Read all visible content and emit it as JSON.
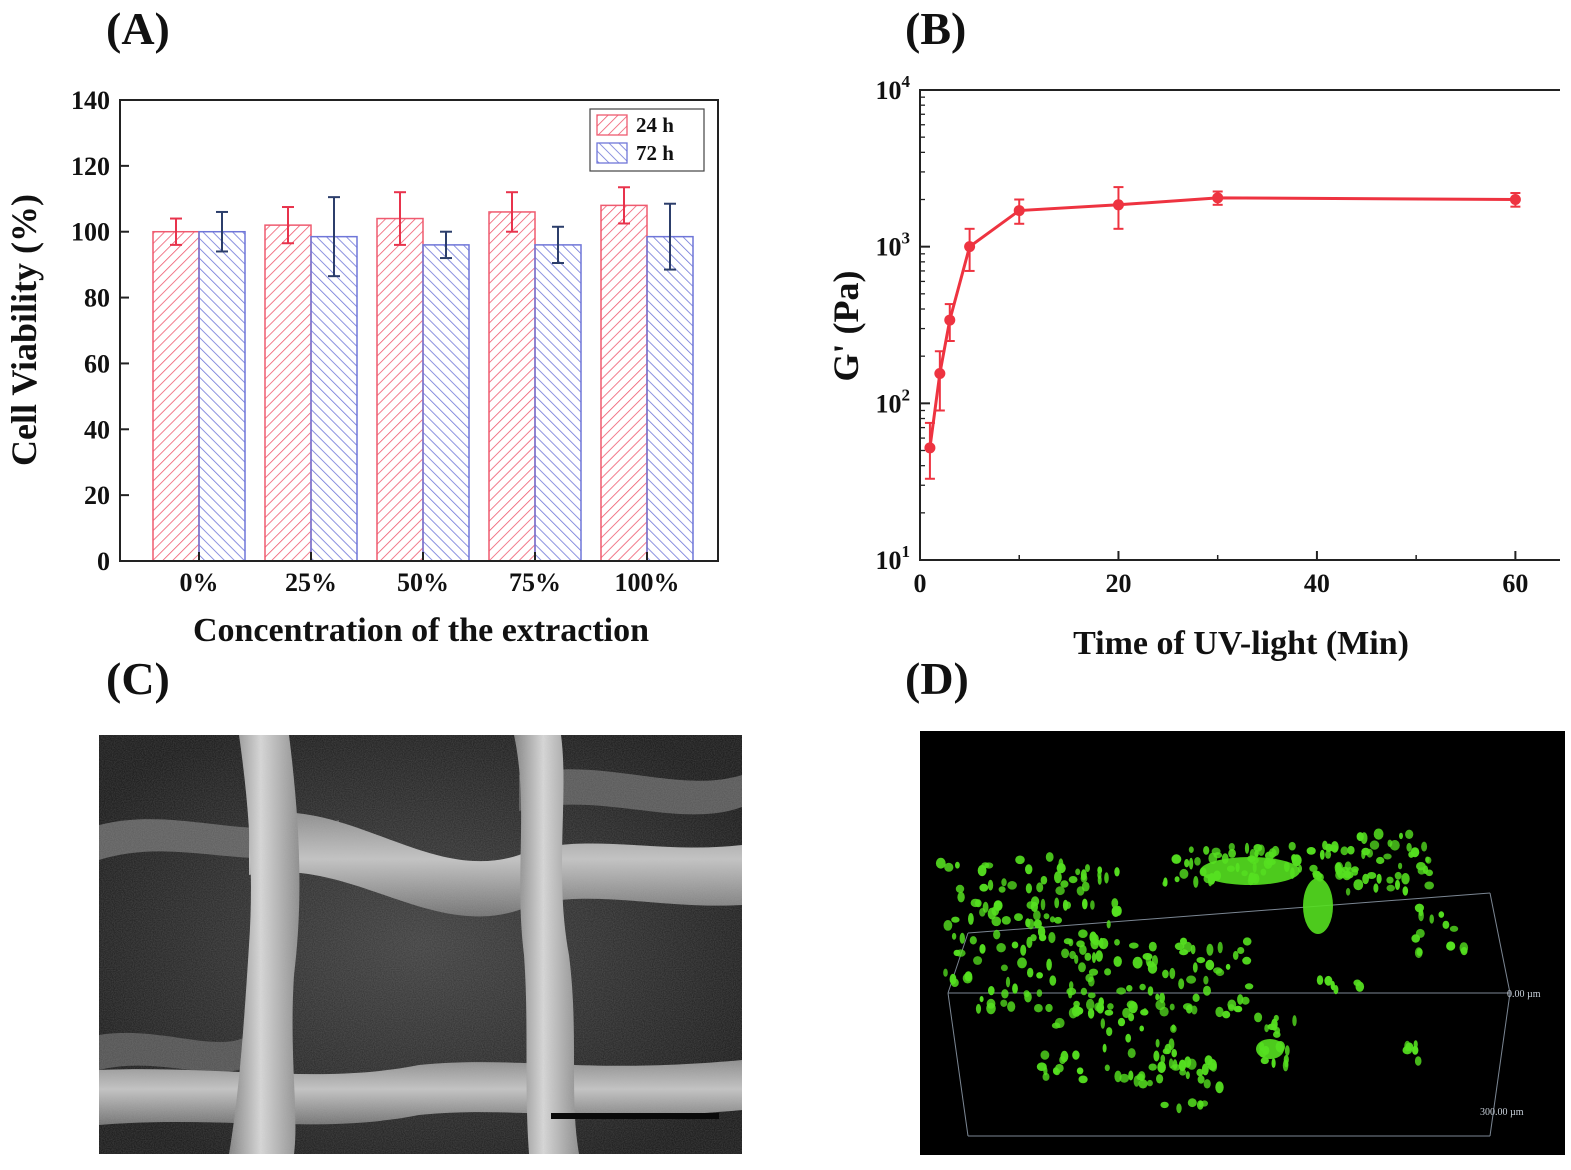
{
  "panels": {
    "a": "(A)",
    "b": "(B)",
    "c": "(C)",
    "d": "(D)"
  },
  "colors": {
    "series_24h": "#ef5a6f",
    "series_72h": "#6f76d8",
    "curve": "#ee3340",
    "errbar_24h": "#e8334c",
    "errbar_72h": "#2c3e6b",
    "cell_stain": "#55e020"
  },
  "chart_data": [
    {
      "id": "A",
      "type": "bar",
      "title": "",
      "xlabel": "Concentration of the extraction",
      "ylabel": "Cell Viability (%)",
      "ylim": [
        0,
        140
      ],
      "yticks": [
        0,
        20,
        40,
        60,
        80,
        100,
        120,
        140
      ],
      "categories": [
        "0%",
        "25%",
        "50%",
        "75%",
        "100%"
      ],
      "legend_position": "top-right",
      "grid": false,
      "series": [
        {
          "name": "24 h",
          "values": [
            100,
            102,
            104,
            106,
            108
          ],
          "errors": [
            4,
            5.5,
            8,
            6,
            5.5
          ]
        },
        {
          "name": "72 h",
          "values": [
            100,
            98.5,
            96,
            96,
            98.5
          ],
          "errors": [
            6,
            12,
            4,
            5.5,
            10
          ]
        }
      ]
    },
    {
      "id": "B",
      "type": "line",
      "title": "",
      "xlabel": "Time of UV-light (Min)",
      "ylabel": "G' (Pa)",
      "yscale": "log",
      "xlim": [
        0,
        65
      ],
      "ylim": [
        10,
        10000
      ],
      "xticks": [
        0,
        20,
        40,
        60
      ],
      "yticks": [
        {
          "base": "10",
          "exp": "1",
          "value": 10
        },
        {
          "base": "10",
          "exp": "2",
          "value": 100
        },
        {
          "base": "10",
          "exp": "3",
          "value": 1000
        },
        {
          "base": "10",
          "exp": "4",
          "value": 10000
        }
      ],
      "grid": false,
      "points": [
        {
          "x": 1,
          "y": 52,
          "lo": 33,
          "hi": 75
        },
        {
          "x": 2,
          "y": 155,
          "lo": 90,
          "hi": 215
        },
        {
          "x": 3,
          "y": 340,
          "lo": 250,
          "hi": 430
        },
        {
          "x": 5,
          "y": 1000,
          "lo": 700,
          "hi": 1300
        },
        {
          "x": 10,
          "y": 1700,
          "lo": 1400,
          "hi": 2000
        },
        {
          "x": 20,
          "y": 1850,
          "lo": 1300,
          "hi": 2400
        },
        {
          "x": 30,
          "y": 2050,
          "lo": 1850,
          "hi": 2250
        },
        {
          "x": 60,
          "y": 2000,
          "lo": 1800,
          "hi": 2200
        }
      ]
    }
  ],
  "confocal": {
    "depth_top": "0.00 µm",
    "depth_bottom": "300.00 µm"
  }
}
